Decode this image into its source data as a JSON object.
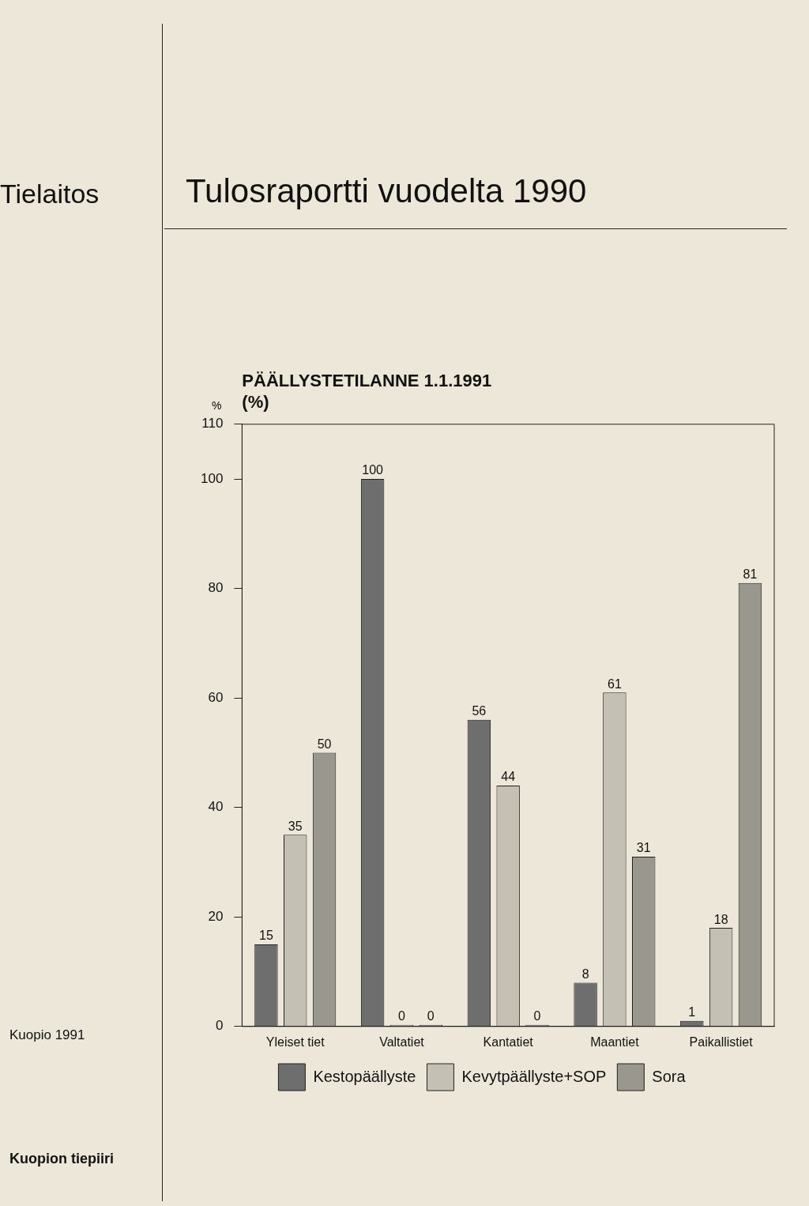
{
  "chart_data": {
    "type": "bar",
    "title": "Tulosraportti vuodelta 1990",
    "subtitle": "PÄÄLLYSTETILANNE 1.1.1991\n(%)",
    "ylabel": "%",
    "categories": [
      "Yleiset tiet",
      "Valtatiet",
      "Kantatiet",
      "Maantiet",
      "Paikallistiet"
    ],
    "series": [
      {
        "name": "Kestopäällyste",
        "color": "#6e6e6e",
        "values": [
          15,
          100,
          56,
          8,
          1
        ]
      },
      {
        "name": "Kevytpäällyste+SOP",
        "color": "#c4c0b4",
        "values": [
          35,
          0,
          44,
          61,
          18
        ]
      },
      {
        "name": "Sora",
        "color": "#9a978f",
        "values": [
          50,
          0,
          0,
          31,
          81
        ]
      }
    ],
    "ylim": [
      0,
      110
    ],
    "yticks": [
      0,
      20,
      40,
      60,
      80,
      100,
      110
    ],
    "grid": false,
    "legend": "bottom",
    "data_labels": true,
    "annotations": [
      "Tielaitos",
      "Kuopio 1991",
      "Kuopion tiepiiri"
    ]
  }
}
